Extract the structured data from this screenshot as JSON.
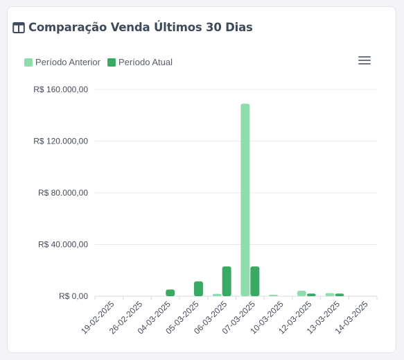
{
  "card": {
    "title": "Comparação Venda Últimos 30 Dias",
    "title_icon": "columns-icon",
    "menu_icon": "hamburger-menu-icon"
  },
  "colors": {
    "previous": "#8fdcac",
    "current": "#3aa963",
    "grid": "#e6e8ec",
    "axis_text": "#444b57"
  },
  "chart_data": {
    "type": "bar",
    "categories": [
      "19-02-2025",
      "26-02-2025",
      "04-03-2025",
      "05-03-2025",
      "06-03-2025",
      "07-03-2025",
      "10-03-2025",
      "12-03-2025",
      "13-03-2025",
      "14-03-2025"
    ],
    "series": [
      {
        "name": "Período Anterior",
        "values": [
          0,
          0,
          0,
          0,
          1800,
          149000,
          600,
          4200,
          2400,
          0
        ]
      },
      {
        "name": "Período Atual",
        "values": [
          0,
          0,
          5200,
          11500,
          23000,
          23000,
          0,
          2000,
          2000,
          0
        ]
      }
    ],
    "ylim": [
      0,
      160000
    ],
    "yticks": [
      "R$ 0,00",
      "R$ 40.000,00",
      "R$ 80.000,00",
      "R$ 120.000,00",
      "R$ 160.000,00"
    ],
    "ytick_values": [
      0,
      40000,
      80000,
      120000,
      160000
    ],
    "legend_position": "top-left",
    "grid": true
  }
}
